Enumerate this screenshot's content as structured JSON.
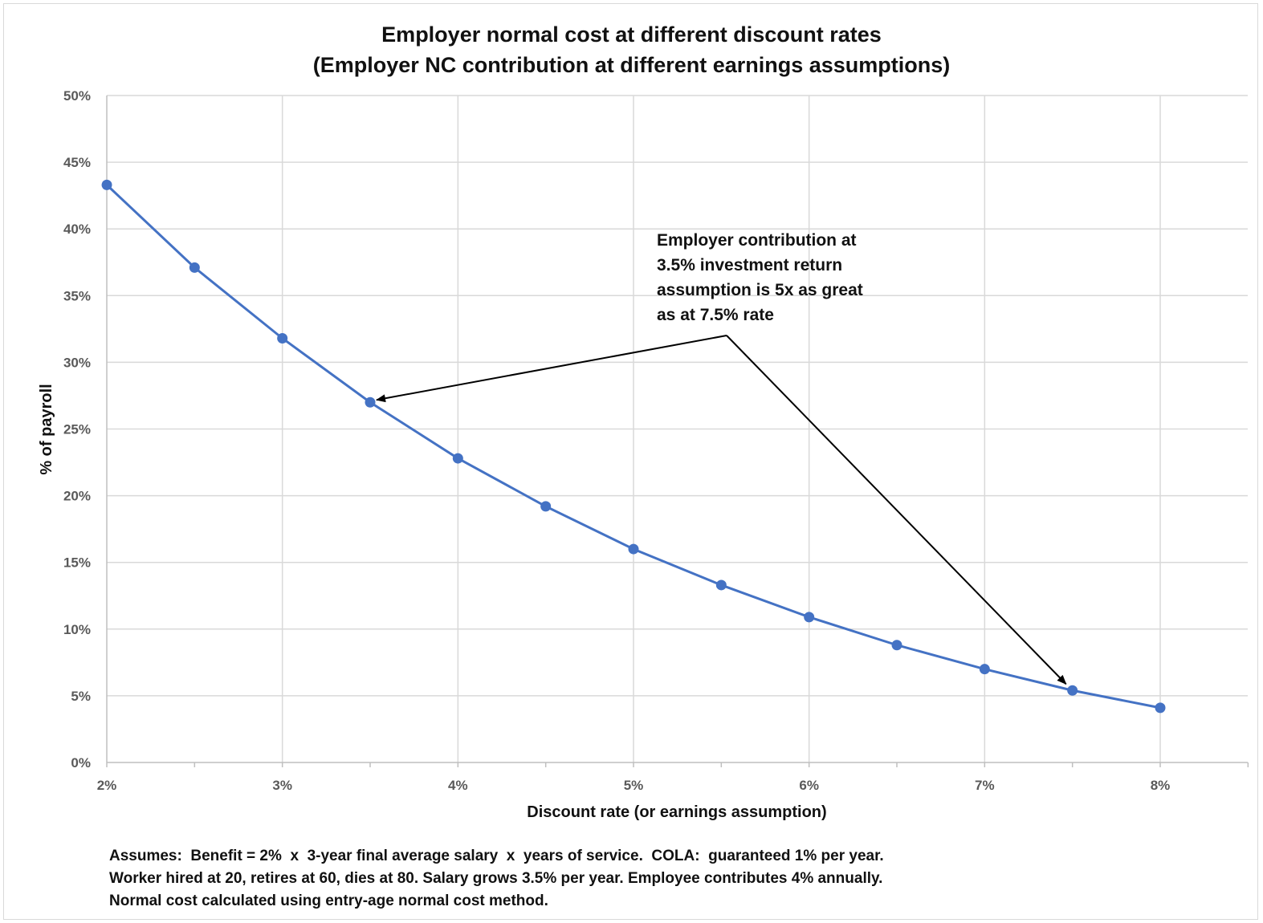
{
  "chart_data": {
    "type": "line",
    "title": "Employer normal cost at different discount rates",
    "subtitle": "(Employer NC contribution at different earnings assumptions)",
    "xlabel": "Discount rate (or earnings assumption)",
    "ylabel": "% of payroll",
    "xlim": [
      2,
      8.5
    ],
    "ylim": [
      0,
      50
    ],
    "x_ticks": [
      2,
      3,
      4,
      5,
      6,
      7,
      8
    ],
    "x_tick_labels": [
      "2%",
      "3%",
      "4%",
      "5%",
      "6%",
      "7%",
      "8%"
    ],
    "y_ticks": [
      0,
      5,
      10,
      15,
      20,
      25,
      30,
      35,
      40,
      45,
      50
    ],
    "y_tick_labels": [
      "0%",
      "5%",
      "10%",
      "15%",
      "20%",
      "25%",
      "30%",
      "35%",
      "40%",
      "45%",
      "50%"
    ],
    "grid": true,
    "series": [
      {
        "x": [
          2,
          2.5,
          3,
          3.5,
          4,
          4.5,
          5,
          5.5,
          6,
          6.5,
          7,
          7.5,
          8
        ],
        "y": [
          43.3,
          37.1,
          31.8,
          27.0,
          22.8,
          19.2,
          16.0,
          13.3,
          10.9,
          8.8,
          7.0,
          5.4,
          4.1
        ],
        "color": "#4472c4"
      }
    ],
    "annotation": {
      "lines": [
        "Employer contribution at",
        "3.5% investment return",
        "assumption is 5x as great",
        "as at 7.5% rate"
      ],
      "arrow_targets": [
        {
          "x": 3.5,
          "y": 27.0
        },
        {
          "x": 7.5,
          "y": 5.4
        }
      ]
    }
  },
  "notes": [
    "Assumes:  Benefit = 2%  x  3-year final average salary  x  years of service.  COLA:  guaranteed 1% per year.",
    "Worker hired at 20, retires at 60, dies at 80. Salary grows 3.5% per year. Employee contributes 4% annually.",
    "Normal cost calculated using entry-age normal cost method."
  ]
}
